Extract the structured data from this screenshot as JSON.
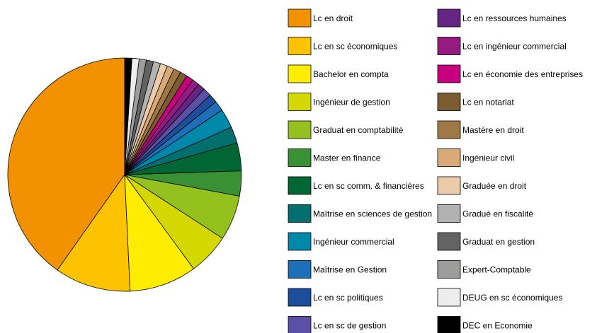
{
  "chart_data": {
    "type": "pie",
    "title": "",
    "legend_placement": "right",
    "start_angle_deg": 0,
    "direction": "counterclockwise",
    "slices": [
      {
        "label": "Lc en droit",
        "value": 40.6,
        "color": "#F39200"
      },
      {
        "label": "Lc en sc économiques",
        "value": 10.6,
        "color": "#FDC300"
      },
      {
        "label": "Bachelor en compta",
        "value": 9.4,
        "color": "#FFED00"
      },
      {
        "label": "Ingénieur de gestion",
        "value": 5.8,
        "color": "#D4D700"
      },
      {
        "label": "Graduat en comptabilité",
        "value": 6.3,
        "color": "#95C11F"
      },
      {
        "label": "Master en finance",
        "value": 3.5,
        "color": "#3A9134"
      },
      {
        "label": "Lc en sc comm. & financières",
        "value": 3.9,
        "color": "#006633"
      },
      {
        "label": "Maîtrise en sciences de gestion",
        "value": 2.3,
        "color": "#006F6E"
      },
      {
        "label": "Ingénieur commercial",
        "value": 2.7,
        "color": "#0088AA"
      },
      {
        "label": "Maîtrise en Gestion",
        "value": 1.4,
        "color": "#1D70B7"
      },
      {
        "label": "Lc en sc politiques",
        "value": 1.2,
        "color": "#1D4E9C"
      },
      {
        "label": "Lc en sc de gestion",
        "value": 1.2,
        "color": "#5B4FA6"
      },
      {
        "label": "Lc en ressources humaines",
        "value": 1.0,
        "color": "#662483"
      },
      {
        "label": "Lc en ingénieur commercial",
        "value": 1.0,
        "color": "#951B81"
      },
      {
        "label": "Lc en économie des entreprises",
        "value": 1.0,
        "color": "#C70080"
      },
      {
        "label": "Lc en notariat",
        "value": 1.0,
        "color": "#7A5B32"
      },
      {
        "label": "Mastère en droit",
        "value": 1.0,
        "color": "#A07845"
      },
      {
        "label": "Ingénieur civil",
        "value": 1.0,
        "color": "#D9A978"
      },
      {
        "label": "Graduée en droit",
        "value": 1.0,
        "color": "#EBCBA9"
      },
      {
        "label": "Gradué en fiscalité",
        "value": 1.0,
        "color": "#B2B2B2"
      },
      {
        "label": "Graduat en gestion",
        "value": 1.0,
        "color": "#646363"
      },
      {
        "label": "Expert-Comptable",
        "value": 1.0,
        "color": "#9D9D9C"
      },
      {
        "label": "DEUG en sc économiques",
        "value": 1.0,
        "color": "#EDEDED"
      },
      {
        "label": "DEC en Economie",
        "value": 1.0,
        "color": "#000000"
      }
    ]
  }
}
